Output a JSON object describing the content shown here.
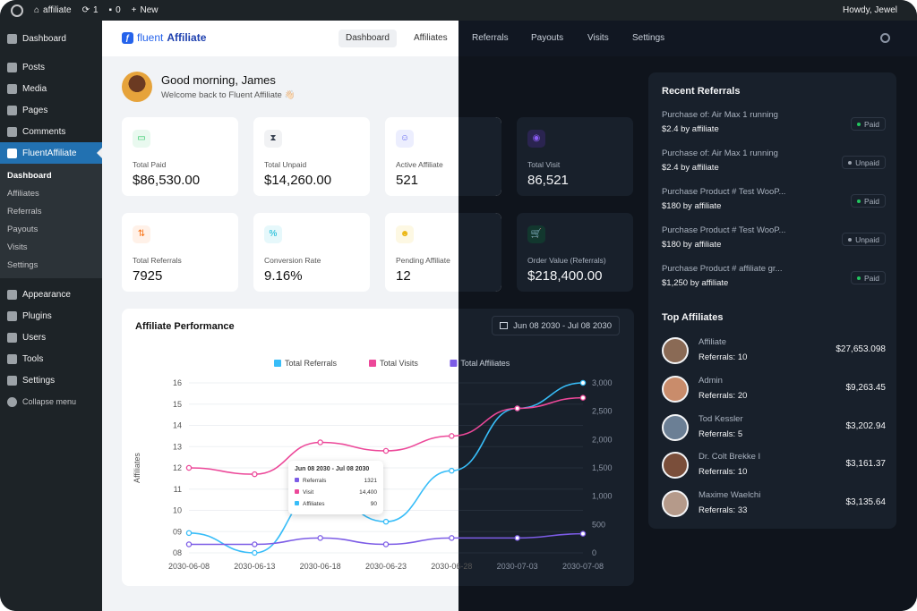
{
  "adminbar": {
    "site": "affiliate",
    "updates": "1",
    "comments": "0",
    "new_label": "New",
    "howdy": "Howdy, Jewel"
  },
  "sidebar": {
    "items_top": [
      {
        "label": "Dashboard"
      },
      {
        "label": "Posts"
      },
      {
        "label": "Media"
      },
      {
        "label": "Pages"
      },
      {
        "label": "Comments"
      }
    ],
    "active": "FluentAffiliate",
    "submenu": [
      "Dashboard",
      "Affiliates",
      "Referrals",
      "Payouts",
      "Visits",
      "Settings"
    ],
    "items_bottom": [
      {
        "label": "Appearance"
      },
      {
        "label": "Plugins"
      },
      {
        "label": "Users"
      },
      {
        "label": "Tools"
      },
      {
        "label": "Settings"
      },
      {
        "label": "Collapse menu"
      }
    ]
  },
  "brand": {
    "part1": "fluent",
    "part2": "Affiliate"
  },
  "nav": [
    "Dashboard",
    "Affiliates",
    "Referrals",
    "Payouts",
    "Visits",
    "Settings"
  ],
  "greeting": {
    "title": "Good morning, James",
    "subtitle": "Welcome back to Fluent Affiliate 👋🏻"
  },
  "stats": [
    {
      "label": "Total Paid",
      "value": "$86,530.00",
      "icon": "wallet-icon",
      "color": "#22c55e"
    },
    {
      "label": "Total Unpaid",
      "value": "$14,260.00",
      "icon": "hourglass-icon",
      "color": "#374151"
    },
    {
      "label": "Active Affiliate",
      "value": "521",
      "icon": "users-icon",
      "color": "#6366f1"
    },
    {
      "label": "Total Visit",
      "value": "86,521",
      "icon": "eye-icon",
      "color": "#8b5cf6"
    },
    {
      "label": "Total Referrals",
      "value": "7925",
      "icon": "referral-icon",
      "color": "#f97316"
    },
    {
      "label": "Conversion Rate",
      "value": "9.16%",
      "icon": "percent-icon",
      "color": "#06b6d4"
    },
    {
      "label": "Pending Affiliate",
      "value": "12",
      "icon": "user-pending-icon",
      "color": "#eab308"
    },
    {
      "label": "Order Value (Referrals)",
      "value": "$218,400.00",
      "icon": "cart-icon",
      "color": "#10b981"
    }
  ],
  "performance": {
    "title": "Affiliate Performance",
    "date_range": "Jun 08 2030 - Jul 08 2030"
  },
  "chart_data": {
    "type": "line",
    "x": [
      "2030-06-08",
      "2030-06-13",
      "2030-06-18",
      "2030-06-23",
      "2030-06-28",
      "2030-07-03",
      "2030-07-08"
    ],
    "ylabel": "Affiliates",
    "y_left_ticks": [
      "08",
      "09",
      "10",
      "11",
      "12",
      "13",
      "14",
      "15",
      "16"
    ],
    "y_right_ticks": [
      "0",
      "500",
      "1,000",
      "1,500",
      "2,000",
      "2,500",
      "3,000"
    ],
    "ylim_left": [
      8,
      16
    ],
    "ylim_right": [
      0,
      3000
    ],
    "legend_position": "top",
    "series": [
      {
        "name": "Total Referrals",
        "color": "#38bdf8",
        "axis": "right",
        "values": [
          350,
          0,
          1100,
          550,
          1450,
          2550,
          3000
        ]
      },
      {
        "name": "Total Visits",
        "color": "#ec4899",
        "axis": "left",
        "values": [
          12.0,
          11.7,
          13.2,
          12.8,
          13.5,
          14.8,
          15.3
        ]
      },
      {
        "name": "Total Affiliates",
        "color": "#7c5ce6",
        "axis": "left",
        "values": [
          8.4,
          8.4,
          8.7,
          8.4,
          8.7,
          8.7,
          8.9
        ]
      }
    ],
    "tooltip": {
      "title": "Jun 08 2030 - Jul 08 2030",
      "rows": [
        {
          "label": "Referrals",
          "value": "1321",
          "color": "#7c5ce6"
        },
        {
          "label": "Visit",
          "value": "14,400",
          "color": "#ec4899"
        },
        {
          "label": "Affiliates",
          "value": "90",
          "color": "#38bdf8"
        }
      ]
    }
  },
  "recent_referrals": {
    "title": "Recent Referrals",
    "items": [
      {
        "title": "Purchase of: Air Max 1 running",
        "amount": "$2.4 by affiliate",
        "status": "Paid",
        "status_color": "#22c55e"
      },
      {
        "title": "Purchase of: Air Max 1 running",
        "amount": "$2.4 by affiliate",
        "status": "Unpaid",
        "status_color": "#9ca3af"
      },
      {
        "title": "Purchase Product # Test WooP...",
        "amount": "$180 by affiliate",
        "status": "Paid",
        "status_color": "#22c55e"
      },
      {
        "title": "Purchase Product # Test WooP...",
        "amount": "$180 by affiliate",
        "status": "Unpaid",
        "status_color": "#9ca3af"
      },
      {
        "title": "Purchase Product # affiliate gr...",
        "amount": "$1,250 by affiliate",
        "status": "Paid",
        "status_color": "#22c55e"
      }
    ]
  },
  "top_affiliates": {
    "title": "Top Affiliates",
    "items": [
      {
        "name": "Affiliate",
        "referrals": "Referrals: 10",
        "amount": "$27,653.098",
        "avatar_color": "#8a6a55"
      },
      {
        "name": "Admin",
        "referrals": "Referrals: 20",
        "amount": "$9,263.45",
        "avatar_color": "#c98c6b"
      },
      {
        "name": "Tod Kessler",
        "referrals": "Referrals: 5",
        "amount": "$3,202.94",
        "avatar_color": "#6b7f95"
      },
      {
        "name": "Dr. Colt Brekke I",
        "referrals": "Referrals: 10",
        "amount": "$3,161.37",
        "avatar_color": "#7a4e3a"
      },
      {
        "name": "Maxime Waelchi",
        "referrals": "Referrals: 33",
        "amount": "$3,135.64",
        "avatar_color": "#b59a8a"
      }
    ]
  }
}
